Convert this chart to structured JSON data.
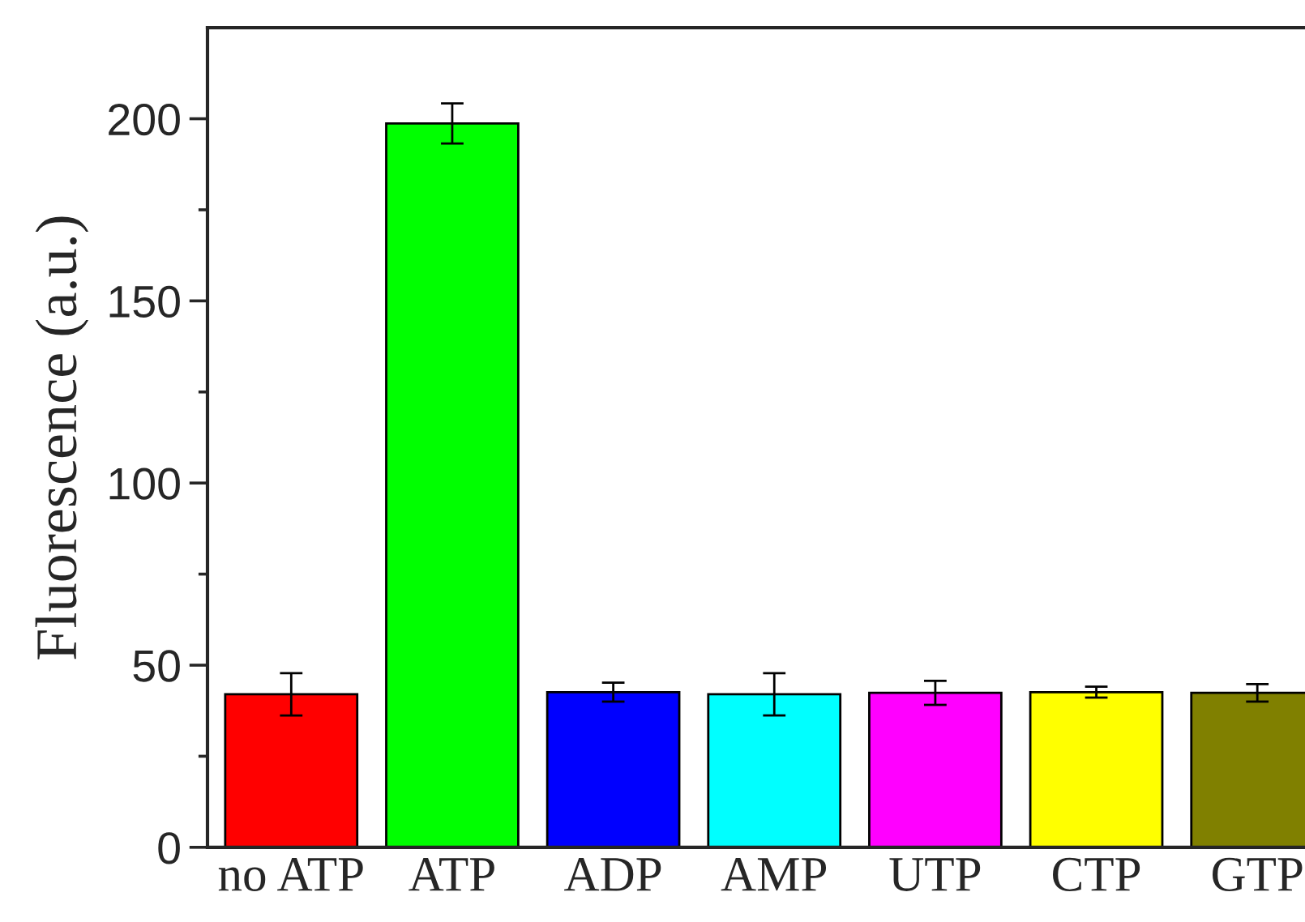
{
  "chart_data": {
    "type": "bar",
    "ylabel": "Fluorescence (a.u.)",
    "categories": [
      "no ATP",
      "ATP",
      "ADP",
      "AMP",
      "UTP",
      "CTP",
      "GTP"
    ],
    "values": [
      42.0,
      198.7,
      42.6,
      42.0,
      42.4,
      42.6,
      42.4
    ],
    "errors": [
      5.8,
      5.5,
      2.6,
      5.8,
      3.3,
      1.5,
      2.4
    ],
    "colors": [
      "#ff0000",
      "#00ff00",
      "#0000ff",
      "#00ffff",
      "#ff00ff",
      "#ffff00",
      "#808000"
    ],
    "ylim": [
      0,
      225
    ],
    "yticks": [
      0,
      {
        "value": 25,
        "label": null
      },
      50,
      {
        "value": 75,
        "label": null
      },
      100,
      {
        "value": 125,
        "label": null
      },
      150,
      {
        "value": 175,
        "label": null
      },
      200
    ],
    "grid": false
  }
}
